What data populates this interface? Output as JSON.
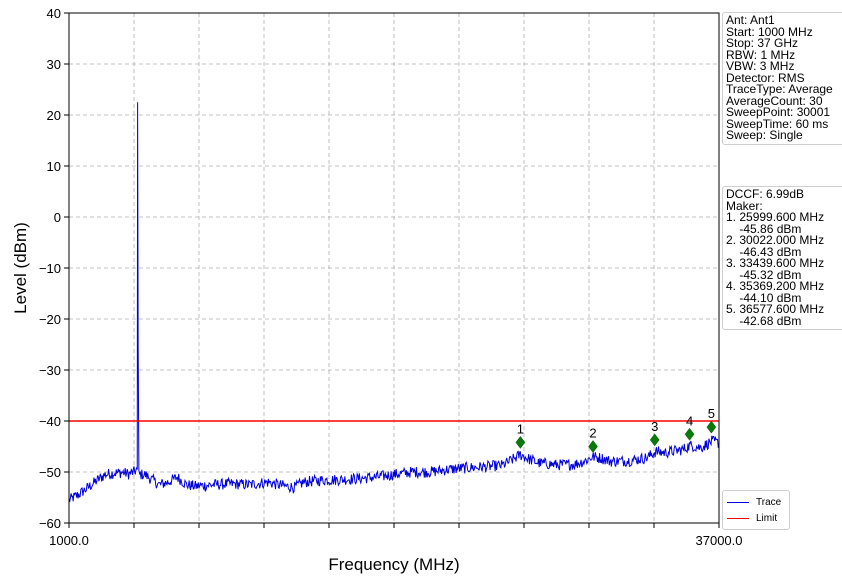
{
  "chart_data": {
    "type": "line",
    "xlabel": "Frequency (MHz)",
    "ylabel": "Level (dBm)",
    "xlim": [
      1000,
      37000
    ],
    "ylim": [
      -60,
      40
    ],
    "x_tick_labels": [
      {
        "value": 1000,
        "label": "1000.0"
      },
      {
        "value": 37000,
        "label": "37000.0"
      }
    ],
    "x_grid_count": 10,
    "y_ticks": [
      40,
      30,
      20,
      10,
      0,
      -10,
      -20,
      -30,
      -40,
      -50,
      -60
    ],
    "y_tick_labels": [
      "40",
      "30",
      "20",
      "10",
      "0",
      "−10",
      "−20",
      "−30",
      "−40",
      "−50",
      "−60"
    ],
    "grid": true,
    "series": [
      {
        "name": "Trace",
        "color": "#0000dd",
        "points": [
          [
            1000,
            -55.5
          ],
          [
            1500,
            -54.5
          ],
          [
            2000,
            -53.2
          ],
          [
            2500,
            -51.8
          ],
          [
            3000,
            -50.5
          ],
          [
            3500,
            -50.2
          ],
          [
            4000,
            -50.1
          ],
          [
            4300,
            -50.4
          ],
          [
            4600,
            -50.0
          ],
          [
            4780,
            -49.5
          ],
          [
            4800,
            22.5
          ],
          [
            4830,
            -25.0
          ],
          [
            4870,
            -50.5
          ],
          [
            5200,
            -50.5
          ],
          [
            5600,
            -51.5
          ],
          [
            6000,
            -52.5
          ],
          [
            6500,
            -52.0
          ],
          [
            7000,
            -51.0
          ],
          [
            7500,
            -52.5
          ],
          [
            8000,
            -52.8
          ],
          [
            9000,
            -52.5
          ],
          [
            10000,
            -52.3
          ],
          [
            11000,
            -52.5
          ],
          [
            12000,
            -52.0
          ],
          [
            13000,
            -52.8
          ],
          [
            13500,
            -53.0
          ],
          [
            14000,
            -52.0
          ],
          [
            15000,
            -51.6
          ],
          [
            16000,
            -51.5
          ],
          [
            17000,
            -51.3
          ],
          [
            18000,
            -51.0
          ],
          [
            19000,
            -50.5
          ],
          [
            20000,
            -50.0
          ],
          [
            21000,
            -50.0
          ],
          [
            22000,
            -49.5
          ],
          [
            23000,
            -49.2
          ],
          [
            24000,
            -49.0
          ],
          [
            25000,
            -48.7
          ],
          [
            25600,
            -47.5
          ],
          [
            26000,
            -46.6
          ],
          [
            26500,
            -47.5
          ],
          [
            27000,
            -48.2
          ],
          [
            28000,
            -48.6
          ],
          [
            29000,
            -48.5
          ],
          [
            29600,
            -47.8
          ],
          [
            30000,
            -47.0
          ],
          [
            30500,
            -47.3
          ],
          [
            31000,
            -47.9
          ],
          [
            32000,
            -47.8
          ],
          [
            33000,
            -47.2
          ],
          [
            33500,
            -46.0
          ],
          [
            34000,
            -46.2
          ],
          [
            35000,
            -45.6
          ],
          [
            35400,
            -44.8
          ],
          [
            36000,
            -45.2
          ],
          [
            36600,
            -44.0
          ],
          [
            37000,
            -44.3
          ]
        ]
      },
      {
        "name": "Limit",
        "color": "#ff0000",
        "points": [
          [
            1000,
            -40
          ],
          [
            37000,
            -40
          ]
        ]
      }
    ],
    "markers": [
      {
        "label": "1",
        "x": 25999.6,
        "y": -44.2
      },
      {
        "label": "2",
        "x": 30022.0,
        "y": -45.0
      },
      {
        "label": "3",
        "x": 33439.6,
        "y": -43.7
      },
      {
        "label": "4",
        "x": 35369.2,
        "y": -42.6
      },
      {
        "label": "5",
        "x": 36577.6,
        "y": -41.2
      }
    ],
    "marker_color": "#0a7a0a",
    "legend_position": "lower-right"
  },
  "settings_lines": [
    "Ant: Ant1",
    "Start: 1000 MHz",
    "Stop: 37 GHz",
    "RBW: 1 MHz",
    "VBW: 3 MHz",
    "Detector: RMS",
    "TraceType: Average",
    "AverageCount: 30",
    "SweepPoint: 30001",
    "SweepTime: 60 ms",
    "Sweep: Single"
  ],
  "marker_lines": [
    "DCCF: 6.99dB",
    "Maker:",
    "1. 25999.600 MHz",
    "    -45.86 dBm",
    "2. 30022.000 MHz",
    "    -46.43 dBm",
    "3. 33439.600 MHz",
    "    -45.32 dBm",
    "4. 35369.200 MHz",
    "    -44.10 dBm",
    "5. 36577.600 MHz",
    "    -42.68 dBm"
  ]
}
